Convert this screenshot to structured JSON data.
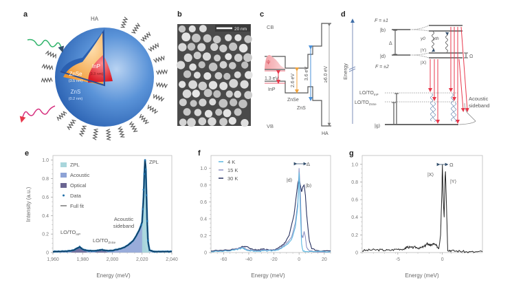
{
  "panels": {
    "a": {
      "label": "a",
      "ha": "HA",
      "core": "InP",
      "core_size": "(3.3 nm)",
      "shell1": "ZnSe",
      "shell1_size": "(3.5 nm)",
      "shell2": "ZnS",
      "shell2_size": "(0.2 nm)"
    },
    "b": {
      "label": "b",
      "scalebar": "20 nm"
    },
    "c": {
      "label": "c",
      "cb": "CB",
      "vb": "VB",
      "psi": "ψ",
      "inp": "InP",
      "znse": "ZnSe",
      "zns": "ZnS",
      "ha": "HA",
      "gap_inp": "1.3 eV",
      "gap_znse": "2.6 eV",
      "gap_zns": "3.6 eV",
      "gap_ha": "≥6.0 eV"
    },
    "d": {
      "label": "d",
      "f1": "F = ±1",
      "f2": "F = ±2",
      "b": "|b⟩",
      "d": "|d⟩",
      "x": "|X⟩",
      "y": "|Y⟩",
      "g": "|g⟩",
      "delta": "Δ",
      "omega": "Ω",
      "gamma0": "γ0",
      "gammath": "γth",
      "lo_inp": "LO/TO",
      "lo_inp_sub": "InP",
      "lo_znse": "LO/TO",
      "lo_znse_sub": "ZnSe",
      "energy": "Energy",
      "acoustic1": "Acoustic",
      "acoustic2": "sideband"
    },
    "e": {
      "label": "e"
    },
    "f": {
      "label": "f"
    },
    "g": {
      "label": "g"
    }
  },
  "colors": {
    "shell_blue": "#2f6fc4",
    "znse_orange": "#f2a24a",
    "inp_red": "#e3262f",
    "zpl": "#a9d6dc",
    "acoustic": "#8ea3d6",
    "optical": "#6a6591",
    "data": "#1f6fa8",
    "fit": "#0e2f4a",
    "f4k": "#5bb7e0",
    "f15k": "#8d93c4",
    "f30k": "#27305f",
    "arrow_red": "#e8374b",
    "gap_orange": "#f0a23a",
    "gap_blue": "#4a90d9"
  },
  "chart_data": [
    {
      "id": "e",
      "type": "area",
      "xlabel": "Energy (meV)",
      "ylabel": "Intensity (a.u.)",
      "xlim": [
        1960,
        2040
      ],
      "ylim": [
        0,
        1.05
      ],
      "xticks": [
        "1,960",
        "1,980",
        "2,000",
        "2,020",
        "2,040"
      ],
      "xtick_values": [
        1960,
        1980,
        2000,
        2020,
        2040
      ],
      "yticks": [
        "0",
        "0.2",
        "0.4",
        "0.6",
        "0.8",
        "1.0"
      ],
      "ytick_values": [
        0,
        0.2,
        0.4,
        0.6,
        0.8,
        1.0
      ],
      "legend": [
        "ZPL",
        "Acoustic",
        "Optical",
        "Data",
        "Full fit"
      ],
      "legend_position": "top-left",
      "annotations": {
        "zpl": "ZPL",
        "acoustic1": "Acoustic",
        "acoustic2": "sideband",
        "lo_inp": "LO/TO",
        "lo_inp_sub": "InP",
        "lo_znse": "LO/TO",
        "lo_znse_sub": "ZnSe"
      },
      "fit": {
        "x": [
          1960,
          1965,
          1970,
          1974,
          1976,
          1978,
          1980,
          1983,
          1986,
          1990,
          1993,
          1996,
          2000,
          2004,
          2008,
          2011,
          2014,
          2016,
          2018,
          2019,
          2020,
          2021,
          2021.5,
          2022,
          2022.5,
          2023,
          2023.5,
          2024,
          2025,
          2028,
          2032,
          2036,
          2040
        ],
        "y": [
          0.01,
          0.012,
          0.015,
          0.025,
          0.045,
          0.06,
          0.035,
          0.02,
          0.018,
          0.022,
          0.03,
          0.02,
          0.022,
          0.035,
          0.055,
          0.085,
          0.13,
          0.18,
          0.24,
          0.28,
          0.33,
          0.6,
          0.85,
          1.0,
          0.9,
          0.6,
          0.3,
          0.12,
          0.025,
          0.01,
          0.01,
          0.01,
          0.01
        ]
      },
      "data_points": {
        "x": [
          2019.5,
          2020.5,
          2021,
          2021.5,
          2022,
          2022.5,
          2023,
          2023.5,
          2024
        ],
        "y": [
          0.3,
          0.47,
          0.68,
          0.85,
          1.0,
          0.9,
          0.62,
          0.34,
          0.13
        ]
      }
    },
    {
      "id": "f",
      "type": "line",
      "xlabel": "Energy (meV)",
      "xlim": [
        -70,
        25
      ],
      "ylim": [
        0,
        1.15
      ],
      "xticks": [
        "-60",
        "-40",
        "-20",
        "0",
        "20"
      ],
      "xtick_values": [
        -60,
        -40,
        -20,
        0,
        20
      ],
      "yticks": [
        "0",
        "0.2",
        "0.4",
        "0.6",
        "0.8",
        "1.0"
      ],
      "ytick_values": [
        0,
        0.2,
        0.4,
        0.6,
        0.8,
        1.0
      ],
      "legend_position": "top-left",
      "annotations": {
        "delta": "Δ",
        "d": "|d⟩",
        "b": "|b⟩"
      },
      "series": [
        {
          "name": "4 K",
          "x": [
            -70,
            -55,
            -48,
            -45,
            -42,
            -38,
            -33,
            -28,
            -22,
            -15,
            -10,
            -6,
            -3,
            -1,
            0,
            1,
            2,
            3,
            5,
            10,
            25
          ],
          "y": [
            0.01,
            0.02,
            0.04,
            0.055,
            0.03,
            0.02,
            0.015,
            0.02,
            0.02,
            0.04,
            0.09,
            0.15,
            0.3,
            0.55,
            0.95,
            0.5,
            0.1,
            0.02,
            0.01,
            0.01,
            0.01
          ]
        },
        {
          "name": "15 K",
          "x": [
            -70,
            -55,
            -48,
            -45,
            -42,
            -38,
            -33,
            -28,
            -22,
            -15,
            -10,
            -6,
            -3,
            -1,
            0,
            1,
            2,
            3,
            4,
            5,
            6,
            8,
            12,
            25
          ],
          "y": [
            0.01,
            0.02,
            0.05,
            0.06,
            0.04,
            0.025,
            0.02,
            0.03,
            0.025,
            0.05,
            0.11,
            0.18,
            0.35,
            0.6,
            1.0,
            0.7,
            0.2,
            0.18,
            0.25,
            0.18,
            0.06,
            0.02,
            0.01,
            0.01
          ]
        },
        {
          "name": "30 K",
          "x": [
            -70,
            -55,
            -48,
            -45,
            -41,
            -38,
            -33,
            -29,
            -24,
            -18,
            -12,
            -8,
            -4,
            -2,
            -1,
            0,
            1,
            2,
            3,
            4,
            5,
            6,
            8,
            10,
            14,
            25
          ],
          "y": [
            0.02,
            0.03,
            0.05,
            0.07,
            0.07,
            0.04,
            0.03,
            0.04,
            0.03,
            0.04,
            0.1,
            0.2,
            0.45,
            0.7,
            0.82,
            0.88,
            0.8,
            0.72,
            0.78,
            0.8,
            0.68,
            0.45,
            0.15,
            0.05,
            0.02,
            0.02
          ]
        }
      ]
    },
    {
      "id": "g",
      "type": "line",
      "xlabel": "Energy (meV)",
      "xlim": [
        -9,
        4.5
      ],
      "ylim": [
        0,
        1.1
      ],
      "xticks": [
        "-5",
        "0"
      ],
      "xtick_values": [
        -5,
        0
      ],
      "yticks": [
        "0",
        "0.2",
        "0.4",
        "0.6",
        "0.8",
        "1.0"
      ],
      "ytick_values": [
        0,
        0.2,
        0.4,
        0.6,
        0.8,
        1.0
      ],
      "annotations": {
        "omega": "Ω",
        "x": "|X⟩",
        "y": "|Y⟩"
      },
      "series": [
        {
          "name": "spectrum",
          "x": [
            -9,
            -8,
            -7,
            -6,
            -5,
            -4.2,
            -4,
            -3.5,
            -3,
            -2.5,
            -2,
            -1.7,
            -1.5,
            -1.3,
            -1,
            -0.7,
            -0.4,
            -0.2,
            -0.05,
            0,
            0.1,
            0.2,
            0.3,
            0.35,
            0.5,
            0.6,
            1,
            2,
            3,
            4.5
          ],
          "y": [
            0.02,
            0.03,
            0.03,
            0.025,
            0.04,
            0.04,
            0.065,
            0.055,
            0.06,
            0.05,
            0.07,
            0.1,
            0.09,
            0.08,
            0.1,
            0.08,
            0.05,
            0.2,
            0.7,
            1.0,
            0.6,
            0.4,
            0.85,
            0.92,
            0.4,
            0.03,
            0.02,
            0.015,
            0.005,
            0.01
          ]
        }
      ]
    }
  ]
}
